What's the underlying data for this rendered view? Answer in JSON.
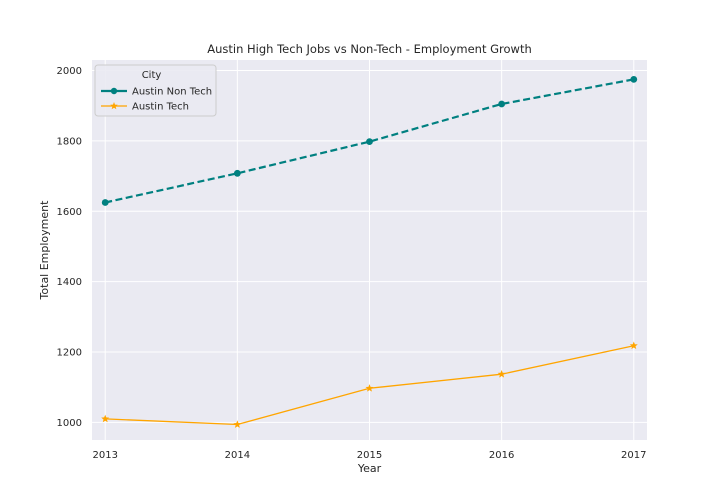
{
  "chart_data": {
    "type": "line",
    "title": "Austin High Tech Jobs vs Non-Tech - Employment Growth",
    "xlabel": "Year",
    "ylabel": "Total Employment",
    "x": [
      2013,
      2014,
      2015,
      2016,
      2017
    ],
    "x_ticks": [
      "2013",
      "2014",
      "2015",
      "2016",
      "2017"
    ],
    "y_ticks": [
      "1000",
      "1200",
      "1400",
      "1600",
      "1800",
      "2000"
    ],
    "ylim": [
      950,
      2030
    ],
    "xlim": [
      2012.9,
      2017.1
    ],
    "grid": true,
    "legend": {
      "title": "City",
      "placement": "top-left"
    },
    "series": [
      {
        "name": "Austin Non Tech",
        "values": [
          1625,
          1708,
          1798,
          1905,
          1975
        ],
        "color": "#008080",
        "line_style": "dashed",
        "marker": "circle"
      },
      {
        "name": "Austin Tech",
        "values": [
          1010,
          994,
          1097,
          1137,
          1218
        ],
        "color": "#FFA500",
        "line_style": "solid",
        "marker": "star"
      }
    ],
    "background": "#EAEAF2"
  }
}
